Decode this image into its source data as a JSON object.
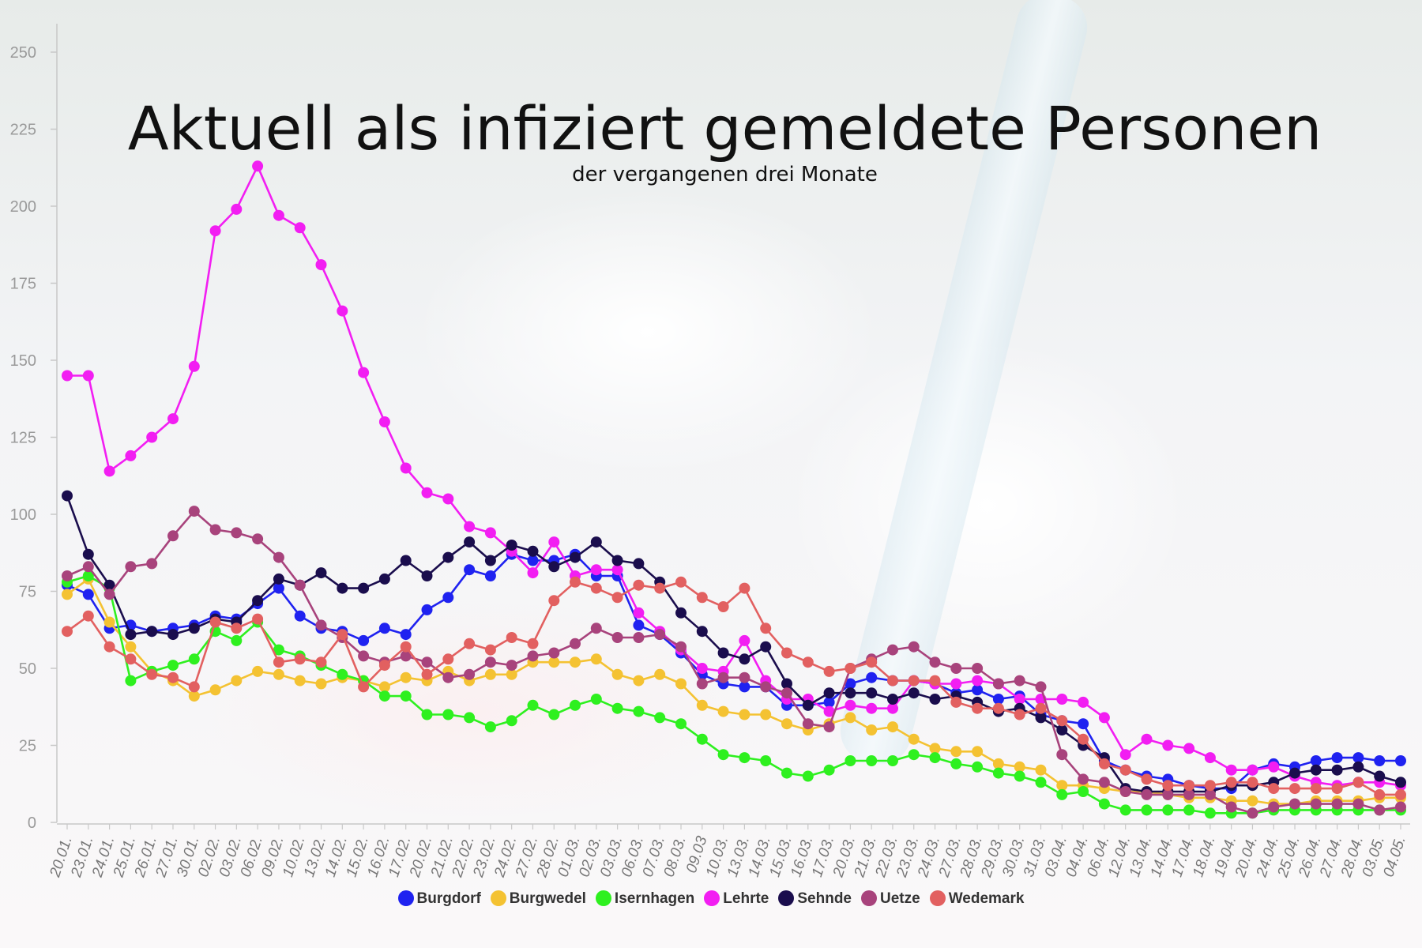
{
  "chart_data": {
    "type": "line",
    "title": "Aktuell als infiziert gemeldete Personen",
    "subtitle": "der vergangenen drei Monate",
    "ylim": [
      0,
      250
    ],
    "yticks": [
      0,
      25,
      50,
      75,
      100,
      125,
      150,
      175,
      200,
      225,
      250
    ],
    "grid": false,
    "legend_position": "bottom",
    "categories": [
      "20.01.",
      "23.01.",
      "24.01.",
      "25.01.",
      "26.01.",
      "27.01.",
      "30.01.",
      "02.02.",
      "03.02.",
      "06.02.",
      "09.02.",
      "10.02.",
      "13.02.",
      "14.02.",
      "15.02.",
      "16.02.",
      "17.02.",
      "20.02.",
      "21.02.",
      "22.02.",
      "23.02.",
      "24.02.",
      "27.02.",
      "28.02.",
      "01.03.",
      "02.03.",
      "03.03.",
      "06.03.",
      "07.03.",
      "08.03.",
      "09.03",
      "10.03.",
      "13.03.",
      "14.03.",
      "15.03.",
      "16.03.",
      "17.03.",
      "20.03.",
      "21.03.",
      "22.03.",
      "23.03.",
      "24.03.",
      "27.03.",
      "28.03.",
      "29.03.",
      "30.03.",
      "31.03.",
      "03.04.",
      "04.04.",
      "06.04.",
      "12.04.",
      "13.04.",
      "14.04.",
      "17.04.",
      "18.04.",
      "19.04.",
      "20.04.",
      "24.04.",
      "25.04.",
      "26.04.",
      "27.04.",
      "28.04.",
      "03.05.",
      "04.05."
    ],
    "series": [
      {
        "name": "Burgdorf",
        "color": "#1f22f0",
        "values": [
          77,
          74,
          63,
          64,
          62,
          63,
          64,
          67,
          66,
          71,
          76,
          67,
          63,
          62,
          59,
          63,
          61,
          69,
          73,
          82,
          80,
          87,
          85,
          85,
          87,
          80,
          80,
          64,
          61,
          55,
          48,
          45,
          44,
          44,
          38,
          38,
          39,
          45,
          47,
          46,
          46,
          45,
          42,
          43,
          40,
          41,
          35,
          33,
          32,
          20,
          17,
          15,
          14,
          12,
          11,
          11,
          17,
          19,
          18,
          20,
          21,
          21,
          20,
          20
        ]
      },
      {
        "name": "Burgwedel",
        "color": "#f4c232",
        "values": [
          74,
          79,
          65,
          57,
          49,
          46,
          41,
          43,
          46,
          49,
          48,
          46,
          45,
          47,
          46,
          44,
          47,
          46,
          49,
          46,
          48,
          48,
          52,
          52,
          52,
          53,
          48,
          46,
          48,
          45,
          38,
          36,
          35,
          35,
          32,
          30,
          32,
          34,
          30,
          31,
          27,
          24,
          23,
          23,
          19,
          18,
          17,
          12,
          12,
          11,
          10,
          10,
          9,
          8,
          8,
          7,
          7,
          6,
          6,
          7,
          7,
          7,
          8,
          8
        ]
      },
      {
        "name": "Isernhagen",
        "color": "#2ef01f",
        "values": [
          78,
          80,
          76,
          46,
          49,
          51,
          53,
          62,
          59,
          65,
          56,
          54,
          51,
          48,
          46,
          41,
          41,
          35,
          35,
          34,
          31,
          33,
          38,
          35,
          38,
          40,
          37,
          36,
          34,
          32,
          27,
          22,
          21,
          20,
          16,
          15,
          17,
          20,
          20,
          20,
          22,
          21,
          19,
          18,
          16,
          15,
          13,
          9,
          10,
          6,
          4,
          4,
          4,
          4,
          3,
          3,
          3,
          4,
          4,
          4,
          4,
          4,
          4,
          4
        ]
      },
      {
        "name": "Lehrte",
        "color": "#f21ef2",
        "values": [
          145,
          145,
          114,
          119,
          125,
          131,
          148,
          192,
          199,
          213,
          197,
          193,
          181,
          166,
          146,
          130,
          115,
          107,
          105,
          96,
          94,
          88,
          81,
          91,
          80,
          82,
          82,
          68,
          62,
          56,
          50,
          49,
          59,
          46,
          40,
          40,
          36,
          38,
          37,
          37,
          46,
          45,
          45,
          46,
          45,
          40,
          40,
          40,
          39,
          34,
          22,
          27,
          25,
          24,
          21,
          17,
          17,
          18,
          15,
          13,
          12,
          13,
          13,
          12
        ]
      },
      {
        "name": "Sehnde",
        "color": "#1a0d4d",
        "values": [
          106,
          87,
          77,
          61,
          62,
          61,
          63,
          66,
          65,
          72,
          79,
          77,
          81,
          76,
          76,
          79,
          85,
          80,
          86,
          91,
          85,
          90,
          88,
          83,
          86,
          91,
          85,
          84,
          78,
          68,
          62,
          55,
          53,
          57,
          45,
          38,
          42,
          42,
          42,
          40,
          42,
          40,
          41,
          39,
          36,
          37,
          34,
          30,
          25,
          21,
          11,
          10,
          10,
          10,
          10,
          12,
          12,
          13,
          16,
          17,
          17,
          18,
          15,
          13
        ]
      },
      {
        "name": "Uetze",
        "color": "#a8437c",
        "values": [
          80,
          83,
          74,
          83,
          84,
          93,
          101,
          95,
          94,
          92,
          86,
          77,
          64,
          60,
          54,
          52,
          54,
          52,
          47,
          48,
          52,
          51,
          54,
          55,
          58,
          63,
          60,
          60,
          61,
          57,
          45,
          47,
          47,
          44,
          42,
          32,
          31,
          50,
          53,
          56,
          57,
          52,
          50,
          50,
          45,
          46,
          44,
          22,
          14,
          13,
          10,
          9,
          9,
          9,
          9,
          5,
          3,
          5,
          6,
          6,
          6,
          6,
          4,
          5
        ]
      },
      {
        "name": "Wedemark",
        "color": "#e26060",
        "values": [
          62,
          67,
          57,
          53,
          48,
          47,
          44,
          65,
          63,
          66,
          52,
          53,
          52,
          61,
          44,
          51,
          57,
          48,
          53,
          58,
          56,
          60,
          58,
          72,
          78,
          76,
          73,
          77,
          76,
          78,
          73,
          70,
          76,
          63,
          55,
          52,
          49,
          50,
          52,
          46,
          46,
          46,
          39,
          37,
          37,
          35,
          37,
          33,
          27,
          19,
          17,
          14,
          12,
          12,
          12,
          13,
          13,
          11,
          11,
          11,
          11,
          13,
          9,
          9
        ]
      }
    ]
  }
}
